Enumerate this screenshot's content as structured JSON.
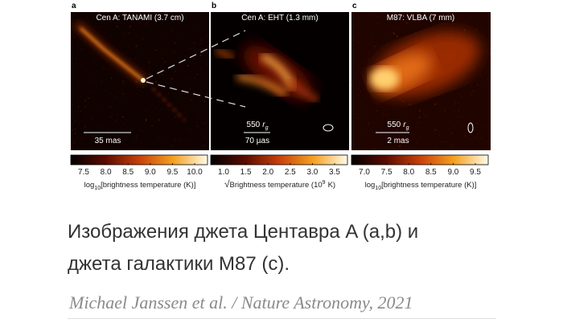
{
  "figure": {
    "panels": [
      {
        "letter": "a",
        "title": "Cen A: TANAMI (3.7 cm)",
        "scale": {
          "text": "35 mas"
        },
        "colorbar": {
          "ticks": [
            "7.5",
            "8.0",
            "8.5",
            "9.0",
            "9.5",
            "10.0"
          ],
          "label": {
            "prefix": "log",
            "sub": "10",
            "main": "[brightness temperature (K)]"
          }
        }
      },
      {
        "letter": "b",
        "title": "Cen A: EHT (1.3 mm)",
        "scale": {
          "number": "550",
          "symbol": "r",
          "subscript": "g",
          "text": "70 µas"
        },
        "colorbar": {
          "ticks": [
            "1.0",
            "1.5",
            "2.0",
            "2.5",
            "3.0",
            "3.5"
          ],
          "label": {
            "root": "√",
            "main": "Brightness temperature (10",
            "sup": "9",
            "end": "K)"
          }
        }
      },
      {
        "letter": "c",
        "title": "M87: VLBA (7 mm)",
        "scale": {
          "number": "550",
          "symbol": "r",
          "subscript": "g",
          "text": "2 mas"
        },
        "colorbar": {
          "ticks": [
            "7.0",
            "7.5",
            "8.0",
            "8.5",
            "9.0",
            "9.5"
          ],
          "label": {
            "prefix": "log",
            "sub": "10",
            "main": "[brightness temperature (K)]"
          }
        }
      }
    ]
  },
  "caption": {
    "lines": [
      "Изображения джета Центавра A (a,b) и",
      "джета галактики M87 (c)."
    ]
  },
  "credit": "Michael Janssen et al. / Nature Astronomy, 2021"
}
